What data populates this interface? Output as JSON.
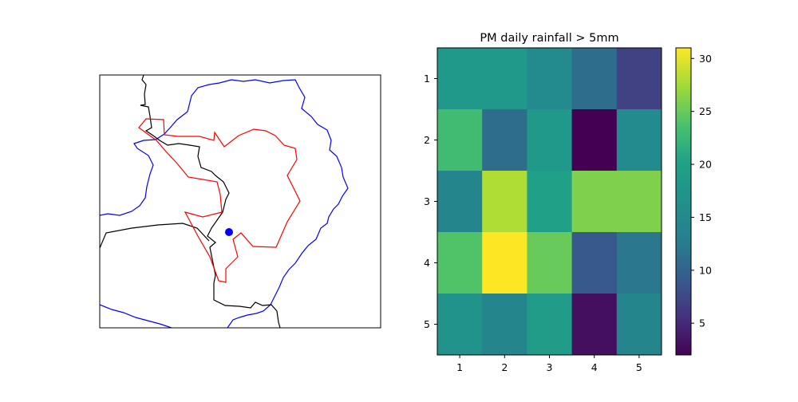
{
  "chart_data": [
    {
      "type": "map",
      "boundaries": [
        {
          "kind": "national border",
          "color": "#000000"
        },
        {
          "kind": "basin outline",
          "color": "#0000ff"
        },
        {
          "kind": "region outline",
          "color": "#ff0000"
        }
      ],
      "point": {
        "color": "#0000ff"
      }
    },
    {
      "type": "heatmap",
      "title": "PM daily rainfall > 5mm",
      "x_categories": [
        "1",
        "2",
        "3",
        "4",
        "5"
      ],
      "y_categories": [
        "1",
        "2",
        "3",
        "4",
        "5"
      ],
      "values": [
        [
          18,
          18,
          15,
          11,
          7
        ],
        [
          23,
          11,
          18,
          2,
          15
        ],
        [
          14,
          28,
          20,
          26,
          26
        ],
        [
          24,
          31,
          25,
          9,
          12
        ],
        [
          17,
          14,
          19,
          3,
          14
        ]
      ],
      "colormap": "viridis",
      "vmin": 2,
      "vmax": 31,
      "colorbar_ticks": [
        "5",
        "10",
        "15",
        "20",
        "25",
        "30"
      ],
      "colorbar_tick_values": [
        5,
        10,
        15,
        20,
        25,
        30
      ]
    }
  ]
}
